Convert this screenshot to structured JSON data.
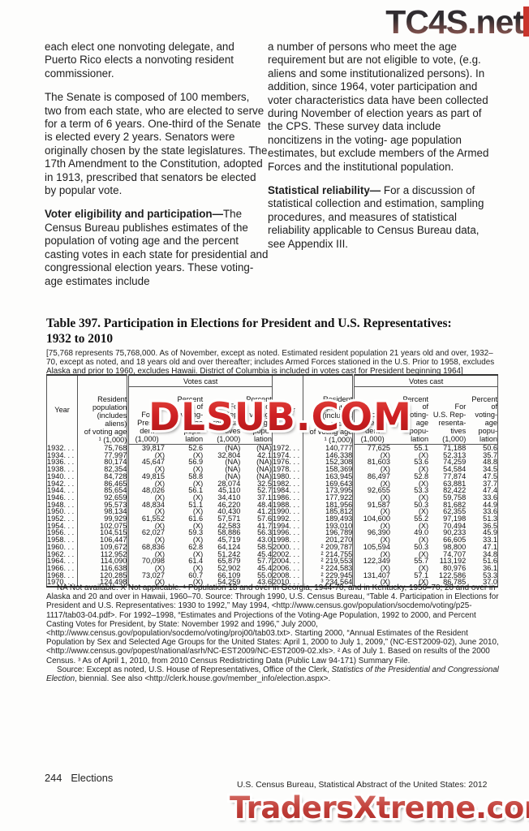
{
  "watermarks": {
    "top": "TC4S.net",
    "middle": "DLSUB.COM",
    "bottom": "TradersXtreme.com"
  },
  "intro": {
    "left_col": {
      "p1": "each elect one nonvoting delegate, and Puerto Rico elects a nonvoting resident commissioner.",
      "p2": "The Senate is composed of 100 members, two from each state, who are elected to serve for a term of 6 years. One-third of the Senate is elected every 2 years. Senators were originally chosen by the state legislatures. The 17th Amendment to the Constitution, adopted in 1913, prescribed that senators be elected by popular vote.",
      "p3_heading": "Voter eligibility and participation—",
      "p3_text": "The Census Bureau publishes estimates of the population of voting age and the percent casting votes in each state for presidential and congressional election years. These voting-age estimates include"
    },
    "right_col": {
      "p1": "a number of persons who meet the age requirement but are not eligible to vote, (e.g. aliens and some institutionalized persons). In addition, since 1964, voter participation and voter characteristics data have been collected during November of election years as part of the CPS. These survey data include noncitizens in the voting- age population estimates, but exclude members of the Armed Forces and the institutional population.",
      "p2_heading": "Statistical reliability—",
      "p2_text": " For a discussion of statistical collection and estimation, sampling procedures, and measures of statistical reliability applicable to Census Bureau data, see Appendix III."
    }
  },
  "table": {
    "title": "Table 397. Participation in Elections for President and U.S. Representatives:\n1932 to 2010",
    "headnote": "[75,768 represents 75,768,000. As of November, except as noted. Estimated resident population 21 years old and over, 1932–70, except as noted, and 18 years old and over thereafter; includes Armed Forces stationed in the U.S. Prior to 1958, excludes Alaska and prior to 1960, excludes Hawaii. District of Columbia is included in votes cast for President beginning 1964]",
    "headers": {
      "year": "Year",
      "population": "Resident\npopulation\n(includes\naliens)\nof voting age\n¹ (1,000)",
      "votes_cast": "Votes cast",
      "president": "For\nPresi-\ndent\n(1,000)",
      "percent": "Percent\nof\nvoting-\nage\npopu-\nlation",
      "representatives": "For\nU.S. Rep-\nresenta-\ntives\n(1,000)"
    },
    "year_leader": ". . .",
    "left_rows": [
      [
        "1932",
        "75,768",
        "39,817",
        "52.6",
        "(NA)",
        "(NA)"
      ],
      [
        "1934",
        "77,997",
        "(X)",
        "(X)",
        "32,804",
        "42.1"
      ],
      [
        "1936",
        "80,174",
        "45,647",
        "56.9",
        "(NA)",
        "(NA)"
      ],
      [
        "1938",
        "82,354",
        "(X)",
        "(X)",
        "(NA)",
        "(NA)"
      ],
      [
        "1940",
        "84,728",
        "49,815",
        "58.8",
        "(NA)",
        "(NA)"
      ],
      [
        "1942",
        "86,465",
        "(X)",
        "(X)",
        "28,074",
        "32.5"
      ],
      [
        "1944",
        "85,654",
        "48,026",
        "56.1",
        "45,110",
        "52.7"
      ],
      [
        "1946",
        "92,659",
        "(X)",
        "(X)",
        "34,410",
        "37.1"
      ],
      [
        "1948",
        "95,573",
        "48,834",
        "51.1",
        "46,220",
        "48.4"
      ],
      [
        "1950",
        "98,134",
        "(X)",
        "(X)",
        "40,430",
        "41.2"
      ],
      [
        "1952",
        "99,929",
        "61,552",
        "61.6",
        "57,571",
        "57.6"
      ],
      [
        "1954",
        "102,075",
        "(X)",
        "(X)",
        "42,583",
        "41.7"
      ],
      [
        "1956",
        "104,515",
        "62,027",
        "59.3",
        "58,886",
        "56.3"
      ],
      [
        "1958",
        "106,447",
        "(X)",
        "(X)",
        "45,719",
        "43.0"
      ],
      [
        "1960",
        "109,672",
        "68,836",
        "62.8",
        "64,124",
        "58.5"
      ],
      [
        "1962",
        "112,952",
        "(X)",
        "(X)",
        "51,242",
        "45.4"
      ],
      [
        "1964",
        "114,090",
        "70,098",
        "61.4",
        "65,879",
        "57.7"
      ],
      [
        "1966",
        "116,638",
        "(X)",
        "(X)",
        "52,902",
        "45.4"
      ],
      [
        "1968",
        "120,285",
        "73,027",
        "60.7",
        "66,109",
        "55.0"
      ],
      [
        "1970",
        "124,498",
        "(X)",
        "(X)",
        "54,259",
        "43.6"
      ]
    ],
    "right_rows": [
      [
        "1972",
        "140,777",
        "77,625",
        "55.1",
        "71,188",
        "50.6"
      ],
      [
        "1974",
        "146,338",
        "(X)",
        "(X)",
        "52,313",
        "35.7"
      ],
      [
        "1976",
        "152,308",
        "81,603",
        "53.6",
        "74,259",
        "48.8"
      ],
      [
        "1978",
        "158,369",
        "(X)",
        "(X)",
        "54,584",
        "34.5"
      ],
      [
        "1980",
        "163,945",
        "86,497",
        "52.8",
        "77,874",
        "47.5"
      ],
      [
        "1982",
        "169,643",
        "(X)",
        "(X)",
        "63,881",
        "37.7"
      ],
      [
        "1984",
        "173,995",
        "92,655",
        "53.3",
        "82,422",
        "47.4"
      ],
      [
        "1986",
        "177,922",
        "(X)",
        "(X)",
        "59,758",
        "33.6"
      ],
      [
        "1988",
        "181,956",
        "91,587",
        "50.3",
        "81,682",
        "44.9"
      ],
      [
        "1990",
        "185,812",
        "(X)",
        "(X)",
        "62,355",
        "33.6"
      ],
      [
        "1992",
        "189,493",
        "104,600",
        "55.2",
        "97,198",
        "51.3"
      ],
      [
        "1994",
        "193,010",
        "(X)",
        "(X)",
        "70,494",
        "36.5"
      ],
      [
        "1996",
        "196,789",
        "96,390",
        "49.0",
        "90,233",
        "45.9"
      ],
      [
        "1998",
        "201,270",
        "(X)",
        "(X)",
        "66,605",
        "33.1"
      ],
      [
        "2000",
        "² 209,787",
        "105,594",
        "50.3",
        "98,800",
        "47.1"
      ],
      [
        "2002",
        "² 214,755",
        "(X)",
        "(X)",
        "74,707",
        "34.8"
      ],
      [
        "2004",
        "² 219,553",
        "122,349",
        "55.7",
        "113,192",
        "51.6"
      ],
      [
        "2006",
        "² 224,583",
        "(X)",
        "(X)",
        "80,976",
        "36.1"
      ],
      [
        "2008",
        "² 229,945",
        "131,407",
        "57.1",
        "122,586",
        "53.3"
      ],
      [
        "2010",
        "³ 234,564",
        "(X)",
        "(X)",
        "86,785",
        "37.0"
      ]
    ]
  },
  "footnotes": {
    "notes": "NA Not available. X Not applicable. ¹ Population 18 and over in Georgia, 1944-70, and in Kentucky, 1956–70; 20 and over in Alaska and 20 and over in Hawaii, 1960–70. Source: Through 1990, U.S. Census Bureau, “Table 4. Participation in Elections for President and U.S. Representatives: 1930 to 1992,” May 1994, <http://www.census.gov/population/socdemo/voting/p25-1117/tab03-04.pdf>. For 1992–1998, “Estimates and Projections of the Voting-Age Population, 1992 to 2000, and Percent Casting Votes for President, by State: November 1992 and 1996,” July 2000, <http://www.census.gov/population/socdemo/voting/proj00/tab03.txt>. Starting 2000, “Annual Estimates of the Resident Population by Sex and Selected Age Groups for the United States: April 1, 2000 to July 1, 2009,” (NC-EST2009-02), June 2010, <http://www.census.gov/popest/national/asrh/NC-EST2009/NC-EST2009-02.xls>. ² As of July 1. Based on results of the 2000 Census. ³ As of April 1, 2010, from 2010 Census Redistricting Data (Public Law 94-171) Summary File.",
    "source_pre": "Source: Except as noted, U.S. House of Representatives, Office of the Clerk, ",
    "source_italic": "Statistics of the Presidential and Congressional Election",
    "source_post": ", biennial. See also <http://clerk.house.gov/member_info/election.aspx>."
  },
  "footer": {
    "page_number": "244",
    "section": "Elections",
    "source_line": "U.S. Census Bureau, Statistical Abstract of the United States: 2012"
  }
}
